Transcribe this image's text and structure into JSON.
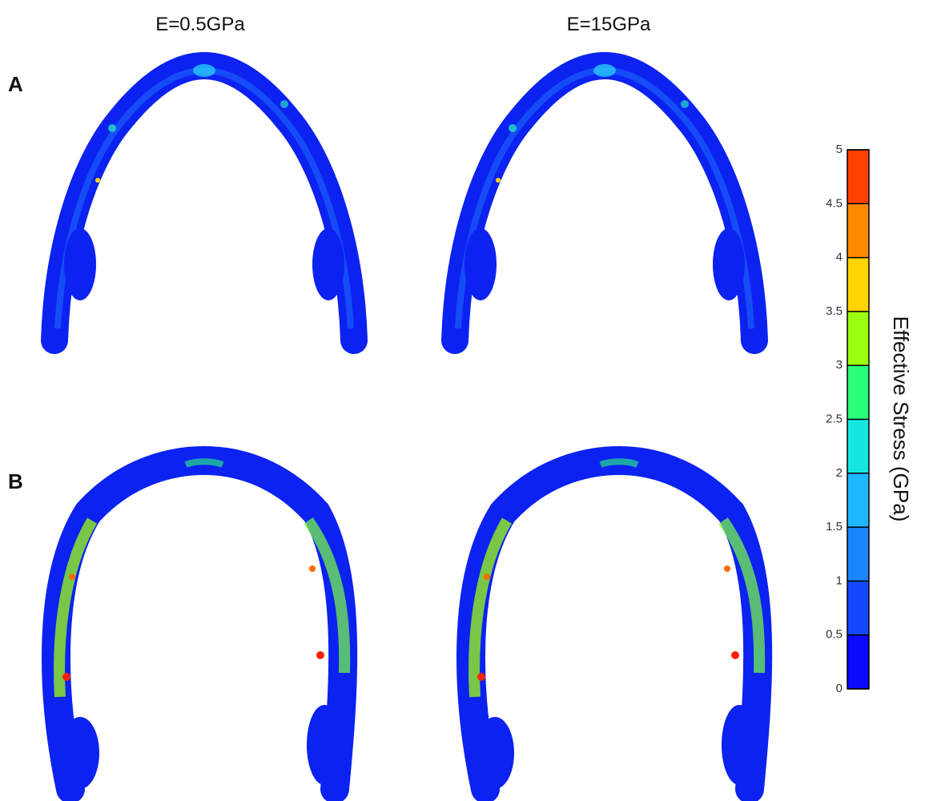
{
  "columns": [
    "E=0.5GPa",
    "E=15GPa"
  ],
  "rows": [
    "A",
    "B"
  ],
  "colorbar": {
    "label": "Effective Stress (GPa)",
    "lim": [
      0,
      5
    ],
    "ticks": [
      0,
      0.5,
      1,
      1.5,
      2,
      2.5,
      3,
      3.5,
      4,
      4.5,
      5
    ],
    "colors": [
      "#0a0aff",
      "#1448ff",
      "#1a84ff",
      "#1eb8ff",
      "#14e6e0",
      "#2aff7a",
      "#9cff10",
      "#ffd400",
      "#ff8a00",
      "#ff4000"
    ]
  }
}
